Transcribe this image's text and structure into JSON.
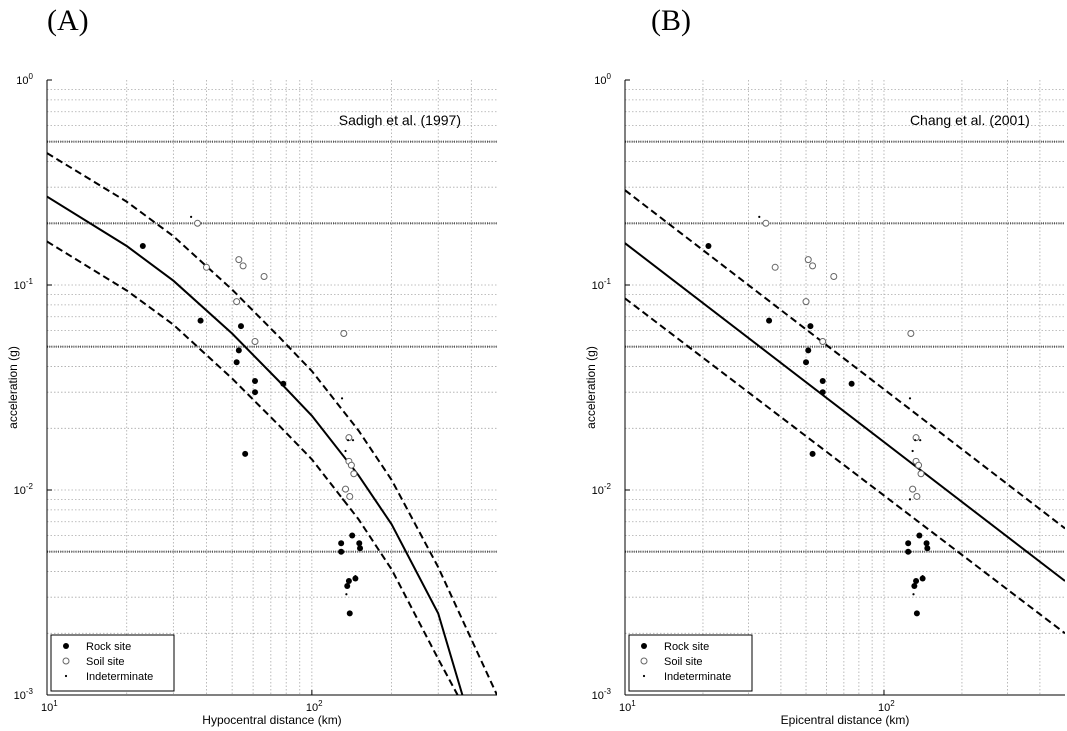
{
  "chart_data": [
    {
      "type": "scatter",
      "panel_label": "(A)",
      "xlabel": "Hypocentral distance (km)",
      "ylabel": "acceleration (g)",
      "annotation": "Sadigh et al. (1997)",
      "xscale": "log",
      "yscale": "log",
      "xlim": [
        10,
        500
      ],
      "ylim": [
        0.001,
        1
      ],
      "x_ticks": [
        {
          "value": 10,
          "base": "10",
          "exp": "1"
        },
        {
          "value": 100,
          "base": "10",
          "exp": "2"
        }
      ],
      "y_ticks": [
        {
          "value": 0.001,
          "base": "10",
          "exp": "-3"
        },
        {
          "value": 0.01,
          "base": "10",
          "exp": "-2"
        },
        {
          "value": 0.1,
          "base": "10",
          "exp": "-1"
        },
        {
          "value": 1,
          "base": "10",
          "exp": "0"
        }
      ],
      "grid": "minor",
      "reference_lines": [
        0.5,
        0.2,
        0.05,
        0.005
      ],
      "legend_position": "bottom-left",
      "series": [
        {
          "name": "Rock site",
          "marker": "filled-circle",
          "points": [
            [
              23,
              0.155
            ],
            [
              38,
              0.067
            ],
            [
              52,
              0.042
            ],
            [
              53,
              0.048
            ],
            [
              54,
              0.063
            ],
            [
              56,
              0.015
            ],
            [
              61,
              0.034
            ],
            [
              61,
              0.03
            ],
            [
              78,
              0.033
            ],
            [
              129,
              0.0055
            ],
            [
              129,
              0.005
            ],
            [
              136,
              0.0034
            ],
            [
              138,
              0.0036
            ],
            [
              139,
              0.0025
            ],
            [
              142,
              0.006
            ],
            [
              146,
              0.0037
            ],
            [
              151,
              0.0055
            ],
            [
              152,
              0.0052
            ]
          ]
        },
        {
          "name": "Soil site",
          "marker": "open-circle",
          "points": [
            [
              37,
              0.2
            ],
            [
              40,
              0.122
            ],
            [
              52,
              0.083
            ],
            [
              53,
              0.133
            ],
            [
              55,
              0.124
            ],
            [
              61,
              0.053
            ],
            [
              66,
              0.11
            ],
            [
              132,
              0.058
            ],
            [
              134,
              0.0101
            ],
            [
              138,
              0.018
            ],
            [
              138,
              0.0138
            ],
            [
              139,
              0.0093
            ],
            [
              141,
              0.0132
            ],
            [
              144,
              0.012
            ]
          ]
        },
        {
          "name": "Indeterminate",
          "marker": "dot",
          "points": [
            [
              35,
              0.215
            ],
            [
              130,
              0.028
            ],
            [
              134,
              0.0155
            ],
            [
              137,
              0.0175
            ],
            [
              143,
              0.0175
            ],
            [
              131,
              0.009
            ],
            [
              135,
              0.0031
            ],
            [
              146,
              0.0038
            ]
          ]
        }
      ],
      "curves": [
        {
          "style": "solid",
          "points": [
            [
              10,
              0.27
            ],
            [
              20,
              0.155
            ],
            [
              30,
              0.105
            ],
            [
              50,
              0.058
            ],
            [
              75,
              0.034
            ],
            [
              100,
              0.023
            ],
            [
              150,
              0.0118
            ],
            [
              200,
              0.0068
            ],
            [
              300,
              0.0025
            ],
            [
              370,
              0.001
            ]
          ]
        },
        {
          "style": "dashed",
          "points": [
            [
              10,
              0.44
            ],
            [
              20,
              0.255
            ],
            [
              30,
              0.173
            ],
            [
              50,
              0.095
            ],
            [
              75,
              0.056
            ],
            [
              100,
              0.038
            ],
            [
              150,
              0.0195
            ],
            [
              200,
              0.0112
            ],
            [
              300,
              0.0042
            ],
            [
              500,
              0.001
            ]
          ]
        },
        {
          "style": "dashed",
          "points": [
            [
              10,
              0.163
            ],
            [
              20,
              0.094
            ],
            [
              30,
              0.064
            ],
            [
              50,
              0.035
            ],
            [
              75,
              0.0207
            ],
            [
              100,
              0.0141
            ],
            [
              150,
              0.0072
            ],
            [
              200,
              0.0041
            ],
            [
              300,
              0.0015
            ],
            [
              355,
              0.001
            ]
          ]
        }
      ]
    },
    {
      "type": "scatter",
      "panel_label": "(B)",
      "xlabel": "Epicentral distance (km)",
      "ylabel": "acceleration (g)",
      "annotation": "Chang et al. (2001)",
      "xscale": "log",
      "yscale": "log",
      "xlim": [
        10,
        500
      ],
      "ylim": [
        0.001,
        1
      ],
      "x_ticks": [
        {
          "value": 10,
          "base": "10",
          "exp": "1"
        },
        {
          "value": 100,
          "base": "10",
          "exp": "2"
        }
      ],
      "y_ticks": [
        {
          "value": 0.001,
          "base": "10",
          "exp": "-3"
        },
        {
          "value": 0.01,
          "base": "10",
          "exp": "-2"
        },
        {
          "value": 0.1,
          "base": "10",
          "exp": "-1"
        },
        {
          "value": 1,
          "base": "10",
          "exp": "0"
        }
      ],
      "grid": "minor",
      "reference_lines": [
        0.5,
        0.2,
        0.05,
        0.005
      ],
      "legend_position": "bottom-left",
      "series": [
        {
          "name": "Rock site",
          "marker": "filled-circle",
          "points": [
            [
              21,
              0.155
            ],
            [
              36,
              0.067
            ],
            [
              50,
              0.042
            ],
            [
              51,
              0.048
            ],
            [
              52,
              0.063
            ],
            [
              53,
              0.015
            ],
            [
              58,
              0.034
            ],
            [
              58,
              0.03
            ],
            [
              75,
              0.033
            ],
            [
              124,
              0.0055
            ],
            [
              124,
              0.005
            ],
            [
              131,
              0.0034
            ],
            [
              133,
              0.0036
            ],
            [
              134,
              0.0025
            ],
            [
              137,
              0.006
            ],
            [
              141,
              0.0037
            ],
            [
              146,
              0.0055
            ],
            [
              147,
              0.0052
            ]
          ]
        },
        {
          "name": "Soil site",
          "marker": "open-circle",
          "points": [
            [
              35,
              0.2
            ],
            [
              38,
              0.122
            ],
            [
              50,
              0.083
            ],
            [
              51,
              0.133
            ],
            [
              53,
              0.124
            ],
            [
              58,
              0.053
            ],
            [
              64,
              0.11
            ],
            [
              127,
              0.058
            ],
            [
              129,
              0.0101
            ],
            [
              133,
              0.018
            ],
            [
              133,
              0.0138
            ],
            [
              134,
              0.0093
            ],
            [
              136,
              0.0132
            ],
            [
              139,
              0.012
            ]
          ]
        },
        {
          "name": "Indeterminate",
          "marker": "dot",
          "points": [
            [
              33,
              0.215
            ],
            [
              126,
              0.028
            ],
            [
              129,
              0.0155
            ],
            [
              132,
              0.0175
            ],
            [
              138,
              0.0175
            ],
            [
              126,
              0.009
            ],
            [
              130,
              0.0031
            ],
            [
              141,
              0.0038
            ]
          ]
        }
      ],
      "curves": [
        {
          "style": "solid",
          "points": [
            [
              10,
              0.16
            ],
            [
              500,
              0.0036
            ]
          ]
        },
        {
          "style": "dashed",
          "points": [
            [
              10,
              0.29
            ],
            [
              500,
              0.0065
            ]
          ]
        },
        {
          "style": "dashed",
          "points": [
            [
              10,
              0.086
            ],
            [
              500,
              0.002
            ]
          ]
        }
      ]
    }
  ]
}
